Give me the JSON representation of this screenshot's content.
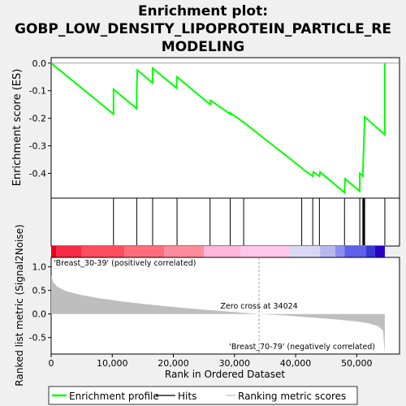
{
  "chart_data": {
    "type": "line",
    "title": "Enrichment plot:\nGOBP_LOW_DENSITY_LIPOPROTEIN_PARTICLE_RE\nMODELING",
    "xlabel": "Rank in Ordered Dataset",
    "ylabel_top": "Enrichment score (ES)",
    "ylabel_bottom": "Ranked list metric (Signal2Noise)",
    "x_ticks": [
      0,
      10000,
      20000,
      30000,
      40000,
      50000
    ],
    "x_tick_labels": [
      "0",
      "10,000",
      "20,000",
      "30,000",
      "40,000",
      "50,000"
    ],
    "xlim": [
      0,
      57000
    ],
    "es": {
      "ylim": [
        -0.49,
        0.02
      ],
      "y_ticks": [
        0.0,
        -0.1,
        -0.2,
        -0.3,
        -0.4
      ],
      "y_tick_labels": [
        "0.0",
        "-0.1",
        "-0.2",
        "-0.3",
        "-0.4"
      ],
      "points": [
        [
          0,
          0.0
        ],
        [
          10200,
          -0.185
        ],
        [
          10200,
          -0.095
        ],
        [
          14000,
          -0.165
        ],
        [
          14000,
          -0.095
        ],
        [
          14100,
          -0.025
        ],
        [
          16600,
          -0.072
        ],
        [
          16600,
          -0.018
        ],
        [
          20500,
          -0.09
        ],
        [
          20600,
          -0.05
        ],
        [
          26000,
          -0.15
        ],
        [
          26100,
          -0.135
        ],
        [
          29300,
          -0.185
        ],
        [
          29300,
          -0.18
        ],
        [
          31500,
          -0.215
        ],
        [
          41000,
          -0.38
        ],
        [
          41200,
          -0.385
        ],
        [
          42800,
          -0.41
        ],
        [
          42900,
          -0.395
        ],
        [
          43900,
          -0.41
        ],
        [
          44000,
          -0.395
        ],
        [
          48000,
          -0.47
        ],
        [
          48100,
          -0.42
        ],
        [
          50500,
          -0.465
        ],
        [
          50500,
          -0.4
        ],
        [
          51000,
          -0.41
        ],
        [
          51100,
          -0.338
        ],
        [
          51200,
          -0.27
        ],
        [
          51300,
          -0.195
        ],
        [
          54600,
          -0.26
        ],
        [
          54600,
          0.0
        ]
      ]
    },
    "hits": [
      10200,
      14000,
      16600,
      20600,
      26000,
      29300,
      31500,
      41000,
      42800,
      43900,
      48000,
      50500,
      51000,
      51100,
      51200,
      51300,
      54600
    ],
    "metric": {
      "ylim": [
        -0.85,
        1.2
      ],
      "y_ticks": [
        1.0,
        0.5,
        0.0,
        -0.5
      ],
      "y_tick_labels": [
        "1.0",
        "0.5",
        "0.0",
        "-0.5"
      ],
      "zero_cross": 34024,
      "zero_cross_label": "Zero cross at 34024",
      "pos_label": "'Breast_30-39' (positively correlated)",
      "neg_label": "'Breast_70-79' (negatively correlated)",
      "profile": [
        [
          0,
          0.82
        ],
        [
          300,
          0.68
        ],
        [
          1000,
          0.58
        ],
        [
          2500,
          0.48
        ],
        [
          5000,
          0.4
        ],
        [
          8000,
          0.33
        ],
        [
          12000,
          0.26
        ],
        [
          16000,
          0.2
        ],
        [
          20000,
          0.15
        ],
        [
          25000,
          0.09
        ],
        [
          30000,
          0.04
        ],
        [
          34024,
          0.0
        ],
        [
          38000,
          -0.03
        ],
        [
          42000,
          -0.07
        ],
        [
          46000,
          -0.11
        ],
        [
          50000,
          -0.16
        ],
        [
          52000,
          -0.2
        ],
        [
          53500,
          -0.26
        ],
        [
          54300,
          -0.35
        ],
        [
          54600,
          -0.85
        ]
      ]
    },
    "colorbar": {
      "segments": [
        {
          "from": 0,
          "to": 800,
          "color": "#e8001c"
        },
        {
          "from": 800,
          "to": 5000,
          "color": "#f52a44"
        },
        {
          "from": 5000,
          "to": 12000,
          "color": "#ff4c5e"
        },
        {
          "from": 12000,
          "to": 18500,
          "color": "#ff6c7c"
        },
        {
          "from": 18500,
          "to": 25000,
          "color": "#ff8c9c"
        },
        {
          "from": 25000,
          "to": 31000,
          "color": "#ffb6d8"
        },
        {
          "from": 31000,
          "to": 39000,
          "color": "#ffc8e8"
        },
        {
          "from": 39000,
          "to": 44000,
          "color": "#d8d8f4"
        },
        {
          "from": 44000,
          "to": 46500,
          "color": "#b8b8ee"
        },
        {
          "from": 46500,
          "to": 48000,
          "color": "#8c8cf0"
        },
        {
          "from": 48000,
          "to": 51500,
          "color": "#6060e8"
        },
        {
          "from": 51500,
          "to": 53000,
          "color": "#3838d8"
        },
        {
          "from": 53000,
          "to": 54600,
          "color": "#2800c8"
        }
      ]
    },
    "legend": {
      "items": [
        {
          "label": "Enrichment profile",
          "color": "#00ff00"
        },
        {
          "label": "Hits",
          "color": "#000000"
        },
        {
          "label": "Ranking metric scores",
          "color": "#c0c0c0"
        }
      ],
      "placement": "bottom"
    },
    "colors": {
      "es_line": "#00ff00",
      "metric_fill": "#bebebe",
      "pos_label": "#e00000",
      "neg_label": "#0000c0"
    }
  }
}
